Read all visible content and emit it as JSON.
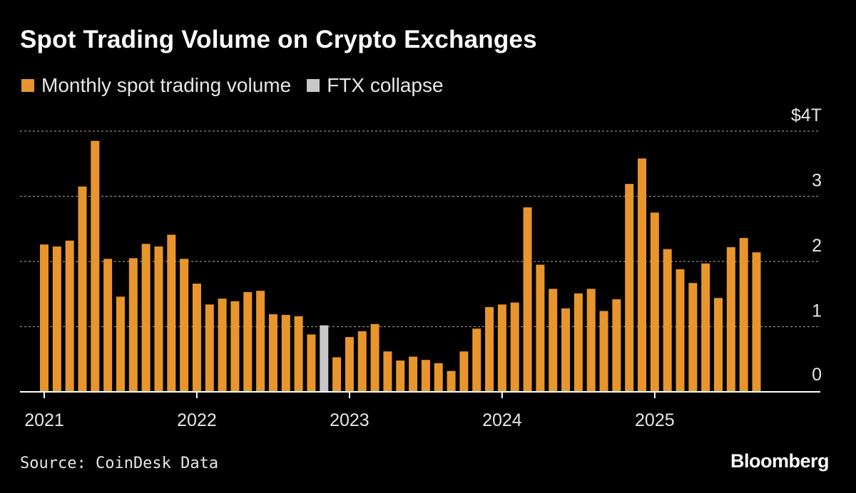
{
  "header": {
    "title": "Spot Trading Volume on Crypto Exchanges"
  },
  "legend": [
    {
      "label": "Monthly spot trading volume",
      "color": "#E8952D"
    },
    {
      "label": "FTX collapse",
      "color": "#C8C8C8"
    }
  ],
  "footer": {
    "source": "Source: CoinDesk Data",
    "logo": "Bloomberg"
  },
  "chart_data": {
    "type": "bar",
    "title": "Spot Trading Volume on Crypto Exchanges",
    "xlabel": "",
    "ylabel": "",
    "ylim": [
      0,
      4
    ],
    "y_ticks": [
      {
        "value": 4,
        "label": "$4T"
      },
      {
        "value": 3,
        "label": "3"
      },
      {
        "value": 2,
        "label": "2"
      },
      {
        "value": 1,
        "label": "1"
      },
      {
        "value": 0,
        "label": "0"
      }
    ],
    "x_ticks": [
      "2021",
      "2022",
      "2023",
      "2024",
      "2025"
    ],
    "grid": true,
    "legend_position": "top-left",
    "highlight": {
      "month": "2022-11",
      "label": "FTX collapse",
      "color": "#C8C8C8"
    },
    "series": [
      {
        "name": "Monthly spot trading volume",
        "color": "#E8952D",
        "months": [
          "2021-01",
          "2021-02",
          "2021-03",
          "2021-04",
          "2021-05",
          "2021-06",
          "2021-07",
          "2021-08",
          "2021-09",
          "2021-10",
          "2021-11",
          "2021-12",
          "2022-01",
          "2022-02",
          "2022-03",
          "2022-04",
          "2022-05",
          "2022-06",
          "2022-07",
          "2022-08",
          "2022-09",
          "2022-10",
          "2022-11",
          "2022-12",
          "2023-01",
          "2023-02",
          "2023-03",
          "2023-04",
          "2023-05",
          "2023-06",
          "2023-07",
          "2023-08",
          "2023-09",
          "2023-10",
          "2023-11",
          "2023-12",
          "2024-01",
          "2024-02",
          "2024-03",
          "2024-04",
          "2024-05",
          "2024-06",
          "2024-07",
          "2024-08",
          "2024-09",
          "2024-10",
          "2024-11",
          "2024-12",
          "2025-01",
          "2025-02",
          "2025-03",
          "2025-04",
          "2025-05",
          "2025-06",
          "2025-07",
          "2025-08",
          "2025-09"
        ],
        "values": [
          2.26,
          2.23,
          2.32,
          3.15,
          3.85,
          2.04,
          1.46,
          2.05,
          2.27,
          2.23,
          2.41,
          2.04,
          1.66,
          1.34,
          1.43,
          1.39,
          1.53,
          1.55,
          1.19,
          1.18,
          1.16,
          0.88,
          1.02,
          0.53,
          0.84,
          0.93,
          1.04,
          0.62,
          0.48,
          0.54,
          0.49,
          0.44,
          0.32,
          0.62,
          0.97,
          1.3,
          1.34,
          1.37,
          2.83,
          1.95,
          1.58,
          1.28,
          1.51,
          1.58,
          1.24,
          1.42,
          3.19,
          3.58,
          2.75,
          2.19,
          1.88,
          1.67,
          1.97,
          1.44,
          2.22,
          2.36,
          2.14
        ]
      }
    ]
  }
}
